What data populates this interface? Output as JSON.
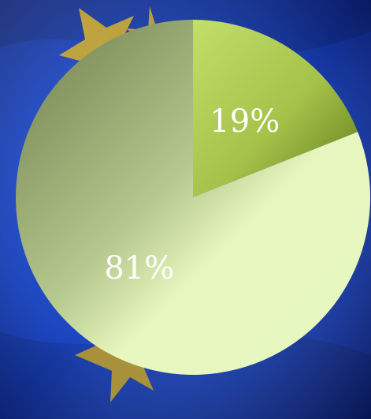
{
  "background": {
    "description_colors": {
      "blue_dark": "#0b1f78",
      "blue_mid": "#1d49c6",
      "blue_light": "#3b6fe8",
      "star": "#c6a93a"
    },
    "icon": "eu-flag-stars"
  },
  "chart_data": {
    "type": "pie",
    "slices": [
      {
        "value": 19,
        "label": "19%",
        "color": "#a5c24a"
      },
      {
        "value": 81,
        "label": "81%",
        "color": "#e8f7bf"
      }
    ],
    "title": "",
    "legend": "none",
    "start_angle_deg": 0,
    "direction": "clockwise"
  }
}
